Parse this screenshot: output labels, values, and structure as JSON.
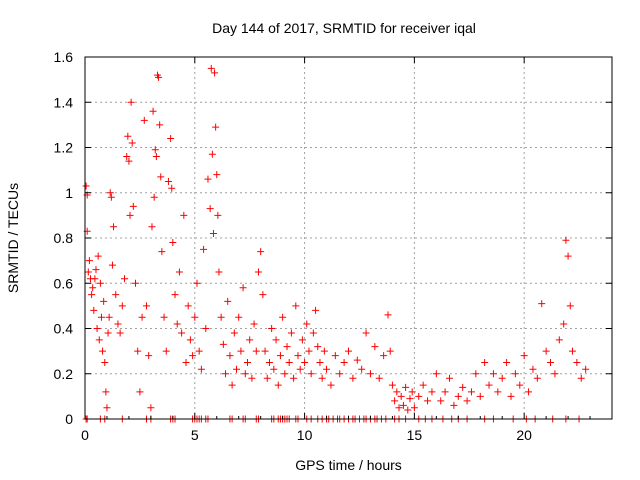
{
  "chart_data": {
    "type": "scatter",
    "title": "Day 144 of 2017, SRMTID for receiver iqal",
    "xlabel": "GPS time / hours",
    "ylabel": "SRMTID / TECUs",
    "xlim": [
      0,
      24
    ],
    "ylim": [
      0,
      1.6
    ],
    "xticks": [
      0,
      5,
      10,
      15,
      20
    ],
    "xtick_labels": [
      "0",
      "5",
      "10",
      "15",
      "20"
    ],
    "yticks": [
      0,
      0.2,
      0.4,
      0.6,
      0.8,
      1.0,
      1.2,
      1.4,
      1.6
    ],
    "ytick_labels": [
      "0",
      "0.2",
      "0.4",
      "0.6",
      "0.8",
      "1",
      "1.2",
      "1.4",
      "1.6"
    ],
    "grid": true,
    "marker": "+",
    "marker_color": "#ff0000",
    "series": [
      {
        "name": "SRMTID",
        "points": [
          [
            0.05,
            1.03
          ],
          [
            0.1,
            0.99
          ],
          [
            0.1,
            0.83
          ],
          [
            0.15,
            0.65
          ],
          [
            0.2,
            0.7
          ],
          [
            0.25,
            0.62
          ],
          [
            0.3,
            0.55
          ],
          [
            0.35,
            0.58
          ],
          [
            0.4,
            0.48
          ],
          [
            0.45,
            0.62
          ],
          [
            0.5,
            0.66
          ],
          [
            0.55,
            0.4
          ],
          [
            0.6,
            0.72
          ],
          [
            0.65,
            0.35
          ],
          [
            0.7,
            0.6
          ],
          [
            0.75,
            0.45
          ],
          [
            0.8,
            0.3
          ],
          [
            0.85,
            0.52
          ],
          [
            0.9,
            0.25
          ],
          [
            0.95,
            0.12
          ],
          [
            1.0,
            0.05
          ],
          [
            1.05,
            0.38
          ],
          [
            1.1,
            0.45
          ],
          [
            1.15,
            1.0
          ],
          [
            1.2,
            0.98
          ],
          [
            1.25,
            0.68
          ],
          [
            1.3,
            0.85
          ],
          [
            1.4,
            0.55
          ],
          [
            1.5,
            0.42
          ],
          [
            1.6,
            0.38
          ],
          [
            1.7,
            0.5
          ],
          [
            1.8,
            0.62
          ],
          [
            1.9,
            1.16
          ],
          [
            1.95,
            1.25
          ],
          [
            2.0,
            1.14
          ],
          [
            2.05,
            0.9
          ],
          [
            2.1,
            1.4
          ],
          [
            2.15,
            1.22
          ],
          [
            2.2,
            0.94
          ],
          [
            2.3,
            0.6
          ],
          [
            2.4,
            0.3
          ],
          [
            2.5,
            0.12
          ],
          [
            2.6,
            0.45
          ],
          [
            2.7,
            1.32
          ],
          [
            2.8,
            0.5
          ],
          [
            2.9,
            0.28
          ],
          [
            3.0,
            0.05
          ],
          [
            3.05,
            0.85
          ],
          [
            3.1,
            1.36
          ],
          [
            3.15,
            0.98
          ],
          [
            3.2,
            1.19
          ],
          [
            3.25,
            1.16
          ],
          [
            3.3,
            1.52
          ],
          [
            3.35,
            1.51
          ],
          [
            3.4,
            1.3
          ],
          [
            3.45,
            1.07
          ],
          [
            3.5,
            0.74
          ],
          [
            3.6,
            0.45
          ],
          [
            3.7,
            0.3
          ],
          [
            3.8,
            1.05
          ],
          [
            3.9,
            1.24
          ],
          [
            3.95,
            1.02
          ],
          [
            4.0,
            0.78
          ],
          [
            4.1,
            0.55
          ],
          [
            4.2,
            0.42
          ],
          [
            4.3,
            0.65
          ],
          [
            4.4,
            0.38
          ],
          [
            4.5,
            0.9
          ],
          [
            4.6,
            0.25
          ],
          [
            4.7,
            0.5
          ],
          [
            4.8,
            0.35
          ],
          [
            4.9,
            0.28
          ],
          [
            5.0,
            0.45
          ],
          [
            5.1,
            0.6
          ],
          [
            5.2,
            0.3
          ],
          [
            5.3,
            0.22
          ],
          [
            5.4,
            0.75
          ],
          [
            5.5,
            0.4
          ],
          [
            5.6,
            1.06
          ],
          [
            5.7,
            0.93
          ],
          [
            5.75,
            1.55
          ],
          [
            5.8,
            1.17
          ],
          [
            5.85,
            0.82
          ],
          [
            5.9,
            1.53
          ],
          [
            5.95,
            1.29
          ],
          [
            6.0,
            1.08
          ],
          [
            6.05,
            0.9
          ],
          [
            6.1,
            0.65
          ],
          [
            6.2,
            0.45
          ],
          [
            6.3,
            0.33
          ],
          [
            6.4,
            0.2
          ],
          [
            6.5,
            0.52
          ],
          [
            6.6,
            0.28
          ],
          [
            6.7,
            0.15
          ],
          [
            6.8,
            0.38
          ],
          [
            6.9,
            0.22
          ],
          [
            7.0,
            0.45
          ],
          [
            7.1,
            0.3
          ],
          [
            7.2,
            0.58
          ],
          [
            7.3,
            0.2
          ],
          [
            7.4,
            0.25
          ],
          [
            7.5,
            0.35
          ],
          [
            7.6,
            0.18
          ],
          [
            7.7,
            0.42
          ],
          [
            7.8,
            0.3
          ],
          [
            7.9,
            0.65
          ],
          [
            8.0,
            0.74
          ],
          [
            8.1,
            0.55
          ],
          [
            8.2,
            0.3
          ],
          [
            8.3,
            0.18
          ],
          [
            8.4,
            0.25
          ],
          [
            8.5,
            0.4
          ],
          [
            8.6,
            0.22
          ],
          [
            8.7,
            0.35
          ],
          [
            8.8,
            0.15
          ],
          [
            8.9,
            0.28
          ],
          [
            9.0,
            0.45
          ],
          [
            9.1,
            0.2
          ],
          [
            9.2,
            0.32
          ],
          [
            9.3,
            0.25
          ],
          [
            9.4,
            0.38
          ],
          [
            9.5,
            0.18
          ],
          [
            9.6,
            0.5
          ],
          [
            9.7,
            0.28
          ],
          [
            9.8,
            0.22
          ],
          [
            9.9,
            0.35
          ],
          [
            10.0,
            0.25
          ],
          [
            10.1,
            0.42
          ],
          [
            10.2,
            0.3
          ],
          [
            10.3,
            0.2
          ],
          [
            10.4,
            0.38
          ],
          [
            10.5,
            0.48
          ],
          [
            10.6,
            0.32
          ],
          [
            10.7,
            0.25
          ],
          [
            10.8,
            0.18
          ],
          [
            10.9,
            0.3
          ],
          [
            11.0,
            0.22
          ],
          [
            11.2,
            0.15
          ],
          [
            11.4,
            0.28
          ],
          [
            11.6,
            0.2
          ],
          [
            11.8,
            0.25
          ],
          [
            12.0,
            0.3
          ],
          [
            12.2,
            0.18
          ],
          [
            12.4,
            0.26
          ],
          [
            12.6,
            0.22
          ],
          [
            12.8,
            0.38
          ],
          [
            13.0,
            0.2
          ],
          [
            13.2,
            0.32
          ],
          [
            13.4,
            0.18
          ],
          [
            13.6,
            0.28
          ],
          [
            13.8,
            0.46
          ],
          [
            13.9,
            0.3
          ],
          [
            14.0,
            0.15
          ],
          [
            14.1,
            0.08
          ],
          [
            14.2,
            0.12
          ],
          [
            14.3,
            0.05
          ],
          [
            14.4,
            0.1
          ],
          [
            14.5,
            0.06
          ],
          [
            14.6,
            0.14
          ],
          [
            14.7,
            0.04
          ],
          [
            14.8,
            0.09
          ],
          [
            14.9,
            0.12
          ],
          [
            15.0,
            0.05
          ],
          [
            15.2,
            0.1
          ],
          [
            15.4,
            0.15
          ],
          [
            15.6,
            0.08
          ],
          [
            15.8,
            0.12
          ],
          [
            16.0,
            0.2
          ],
          [
            16.2,
            0.08
          ],
          [
            16.4,
            0.12
          ],
          [
            16.6,
            0.18
          ],
          [
            16.8,
            0.06
          ],
          [
            17.0,
            0.1
          ],
          [
            17.2,
            0.14
          ],
          [
            17.4,
            0.08
          ],
          [
            17.6,
            0.12
          ],
          [
            17.8,
            0.2
          ],
          [
            18.0,
            0.1
          ],
          [
            18.2,
            0.25
          ],
          [
            18.4,
            0.15
          ],
          [
            18.6,
            0.2
          ],
          [
            18.8,
            0.12
          ],
          [
            19.0,
            0.18
          ],
          [
            19.2,
            0.25
          ],
          [
            19.4,
            0.1
          ],
          [
            19.6,
            0.2
          ],
          [
            19.8,
            0.15
          ],
          [
            20.0,
            0.28
          ],
          [
            20.2,
            0.12
          ],
          [
            20.4,
            0.22
          ],
          [
            20.6,
            0.18
          ],
          [
            20.8,
            0.51
          ],
          [
            21.0,
            0.3
          ],
          [
            21.2,
            0.25
          ],
          [
            21.4,
            0.2
          ],
          [
            21.6,
            0.35
          ],
          [
            21.8,
            0.42
          ],
          [
            21.9,
            0.79
          ],
          [
            22.0,
            0.72
          ],
          [
            22.1,
            0.5
          ],
          [
            22.2,
            0.3
          ],
          [
            22.4,
            0.25
          ],
          [
            22.6,
            0.18
          ],
          [
            22.8,
            0.22
          ]
        ],
        "zero_points_x": [
          0.05,
          0.1,
          0.7,
          0.9,
          1.7,
          2.8,
          3.0,
          3.9,
          4.0,
          4.1,
          4.9,
          5.0,
          5.1,
          5.2,
          5.3,
          5.5,
          5.6,
          6.6,
          6.7,
          7.2,
          7.3,
          7.8,
          7.9,
          8.5,
          8.6,
          8.8,
          8.9,
          9.0,
          9.1,
          9.2,
          9.3,
          9.6,
          9.7,
          10.1,
          10.3,
          10.6,
          10.8,
          11.0,
          11.1,
          11.3,
          11.5,
          11.6,
          11.8,
          12.0,
          12.2,
          12.3,
          12.5,
          12.7,
          12.8,
          13.0,
          13.2,
          13.3,
          13.5,
          13.7,
          14.1,
          14.3,
          14.6,
          15.2,
          15.5,
          15.8,
          16.3,
          16.7,
          17.0,
          17.4,
          18.2,
          18.6,
          19.5,
          20.1,
          20.5,
          21.3,
          21.9,
          22.5
        ]
      }
    ]
  }
}
